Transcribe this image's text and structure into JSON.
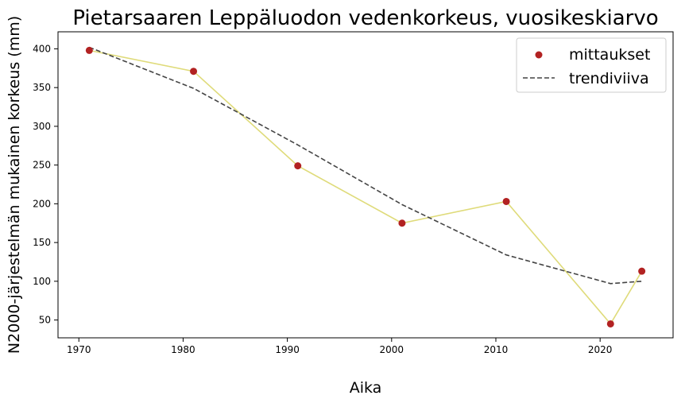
{
  "chart_data": {
    "type": "scatter",
    "title": "Pietarsaaren Leppäluodon vedenkorkeus, vuosikeskiarvo",
    "xlabel": "Aika",
    "ylabel": "N2000-järjestelmän mukainen korkeus (mm)",
    "xlim": [
      1968,
      2027
    ],
    "ylim": [
      27,
      422
    ],
    "xticks": [
      1970,
      1980,
      1990,
      2000,
      2010,
      2020
    ],
    "yticks": [
      50,
      100,
      150,
      200,
      250,
      300,
      350,
      400
    ],
    "grid": false,
    "legend_position": "top-right",
    "series": [
      {
        "name": "mittaukset",
        "kind": "scatter-with-line",
        "marker_color": "#b22222",
        "line_color": "#dfdb7a",
        "x": [
          1971,
          1981,
          1991,
          2001,
          2011,
          2021,
          2024
        ],
        "y": [
          398,
          371,
          249,
          175,
          203,
          45,
          113
        ]
      },
      {
        "name": "trendiviiva",
        "kind": "dashed-line",
        "line_color": "#444444",
        "x": [
          1971,
          1981,
          1991,
          2001,
          2011,
          2021,
          2024
        ],
        "y": [
          402,
          349,
          276,
          199,
          134,
          97,
          100
        ]
      }
    ]
  }
}
